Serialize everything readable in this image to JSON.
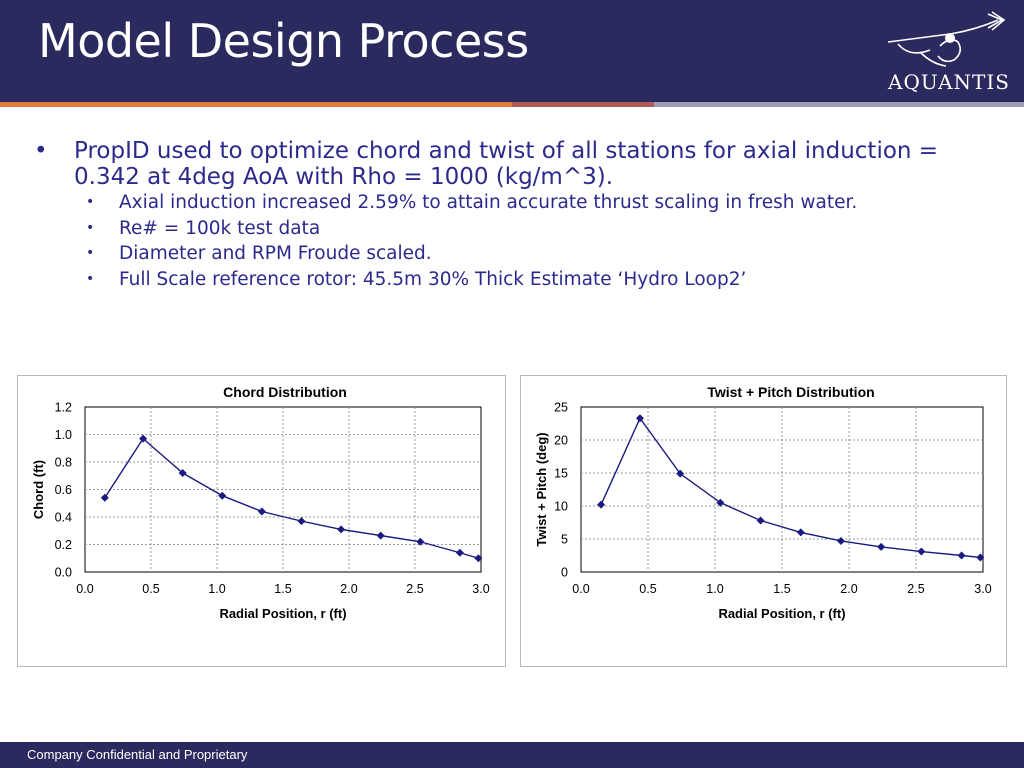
{
  "slide": {
    "title": "Model Design Process",
    "logo_text": "AQUANTIS",
    "footer": "Company Confidential and Proprietary"
  },
  "bullets": {
    "main": "PropID used to optimize chord and twist of all stations for axial induction = 0.342 at 4deg AoA with Rho = 1000 (kg/m^3).",
    "subs": [
      "Axial induction increased 2.59% to attain accurate thrust scaling in fresh water.",
      "Re# = 100k test data",
      "Diameter and RPM Froude scaled.",
      "Full Scale reference rotor: 45.5m 30% Thick Estimate ‘Hydro Loop2’"
    ]
  },
  "colors": {
    "header_bg": "#2b2a5e",
    "bullet_text": "#2b2a8c",
    "series_line": "#1a1a80"
  },
  "chart_data": [
    {
      "type": "line",
      "title": "Chord Distribution",
      "xlabel": "Radial Position, r (ft)",
      "ylabel": "Chord (ft)",
      "xlim": [
        0,
        3.0
      ],
      "ylim": [
        0,
        1.2
      ],
      "xticks": [
        "0.0",
        "0.5",
        "1.0",
        "1.5",
        "2.0",
        "2.5",
        "3.0"
      ],
      "yticks": [
        "0.0",
        "0.2",
        "0.4",
        "0.6",
        "0.8",
        "1.0",
        "1.2"
      ],
      "grid": true,
      "marker": "diamond",
      "x": [
        0.15,
        0.44,
        0.74,
        1.04,
        1.34,
        1.64,
        1.94,
        2.24,
        2.54,
        2.84,
        2.98
      ],
      "y": [
        0.54,
        0.97,
        0.72,
        0.555,
        0.44,
        0.37,
        0.31,
        0.265,
        0.22,
        0.14,
        0.1
      ]
    },
    {
      "type": "line",
      "title": "Twist + Pitch Distribution",
      "xlabel": "Radial Position, r (ft)",
      "ylabel": "Twist + Pitch (deg)",
      "xlim": [
        0,
        3.0
      ],
      "ylim": [
        0,
        25
      ],
      "xticks": [
        "0.0",
        "0.5",
        "1.0",
        "1.5",
        "2.0",
        "2.5",
        "3.0"
      ],
      "yticks": [
        "0",
        "5",
        "10",
        "15",
        "20",
        "25"
      ],
      "grid": true,
      "marker": "diamond",
      "x": [
        0.15,
        0.44,
        0.74,
        1.04,
        1.34,
        1.64,
        1.94,
        2.24,
        2.54,
        2.84,
        2.98
      ],
      "y": [
        10.2,
        23.3,
        14.9,
        10.5,
        7.8,
        6.0,
        4.7,
        3.8,
        3.1,
        2.5,
        2.2
      ]
    }
  ]
}
